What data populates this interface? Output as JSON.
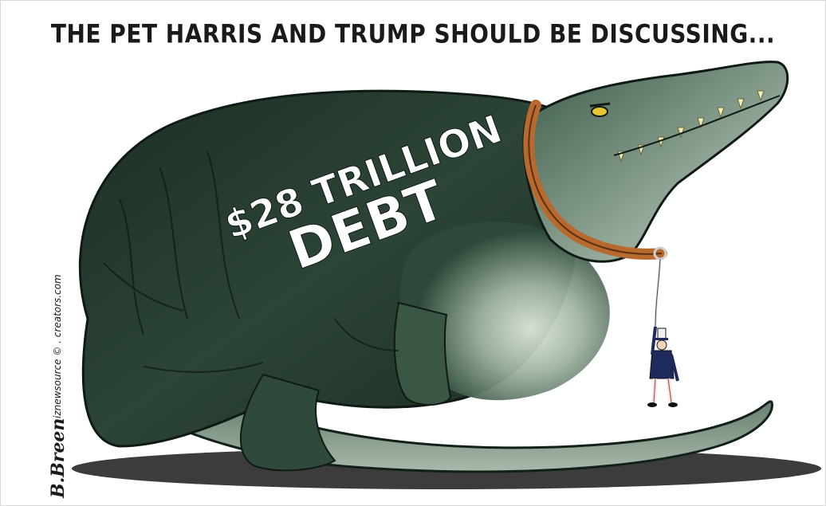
{
  "cartoon": {
    "caption": "THE PET HARRIS AND TRUMP SHOULD BE DISCUSSING...",
    "label_line1": "$28 TRILLION",
    "label_line2": "DEBT",
    "credit_artist": "B.Breen",
    "credit_line": "iznewsource © . creators.com"
  },
  "colors": {
    "croc_dark": "#1f3328",
    "croc_mid": "#3d5c48",
    "croc_light": "#c9d4c8",
    "collar": "#b8692e",
    "eye": "#e8c531",
    "teeth": "#f3ecb8",
    "uncle_sam_coat": "#1e2a5c"
  },
  "icons": [
    "crocodile-illustration",
    "collar",
    "leash",
    "uncle-sam-figure"
  ]
}
